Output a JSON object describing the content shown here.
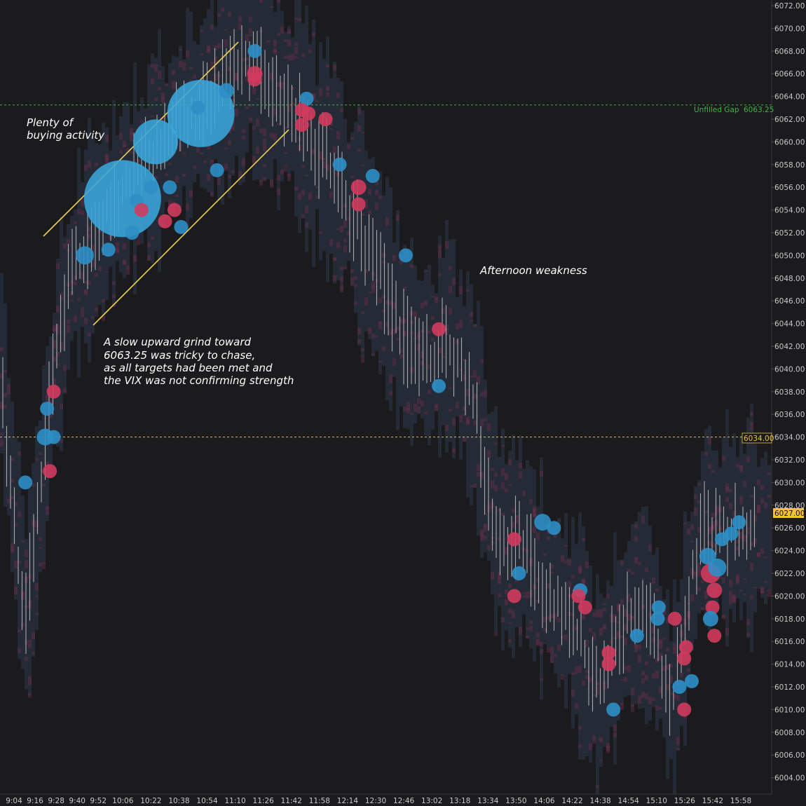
{
  "chart_data": {
    "type": "scatter",
    "title": "",
    "xlabel": "",
    "ylabel": "",
    "ylim": [
      6003,
      6072
    ],
    "grid": false,
    "y_ticks": [
      "6072.00",
      "6070.00",
      "6068.00",
      "6066.00",
      "6064.00",
      "6062.00",
      "6060.00",
      "6058.00",
      "6056.00",
      "6054.00",
      "6052.00",
      "6050.00",
      "6048.00",
      "6046.00",
      "6044.00",
      "6042.00",
      "6040.00",
      "6038.00",
      "6036.00",
      "6034.00",
      "6032.00",
      "6030.00",
      "6028.00",
      "6026.00",
      "6024.00",
      "6022.00",
      "6020.00",
      "6018.00",
      "6016.00",
      "6014.00",
      "6012.00",
      "6010.00",
      "6008.00",
      "6006.00",
      "6004.00"
    ],
    "x_ticks": [
      "9:04",
      "9:16",
      "9:28",
      "9:40",
      "9:52",
      "10:06",
      "10:22",
      "10:38",
      "10:54",
      "11:10",
      "11:26",
      "11:42",
      "11:58",
      "12:14",
      "12:30",
      "12:46",
      "13:02",
      "13:18",
      "13:34",
      "13:50",
      "14:06",
      "14:22",
      "14:38",
      "14:54",
      "15:10",
      "15:26",
      "15:42",
      "15:58"
    ],
    "reference_lines": [
      {
        "label": "Unfilled Gap",
        "value": 6063.25,
        "value_label": "6063.25",
        "color": "#43b04a"
      },
      {
        "label": "",
        "value": 6034.0,
        "value_label": "6034.00",
        "color": "#e8c540"
      }
    ],
    "last_price": {
      "value": 6027.0,
      "label": "6027.00",
      "color": "#f4c430"
    },
    "price_path": [
      [
        9.0,
        6040.5
      ],
      [
        9.1,
        6030.0
      ],
      [
        9.25,
        6018.0
      ],
      [
        9.35,
        6026.0
      ],
      [
        9.45,
        6034.0
      ],
      [
        9.55,
        6041.0
      ],
      [
        9.7,
        6048.0
      ],
      [
        9.85,
        6051.0
      ],
      [
        10.0,
        6053.0
      ],
      [
        10.15,
        6055.0
      ],
      [
        10.3,
        6056.5
      ],
      [
        10.45,
        6058.0
      ],
      [
        10.6,
        6059.5
      ],
      [
        10.75,
        6061.0
      ],
      [
        10.9,
        6062.5
      ],
      [
        11.05,
        6063.5
      ],
      [
        11.2,
        6065.0
      ],
      [
        11.35,
        6066.5
      ],
      [
        11.5,
        6067.5
      ],
      [
        11.65,
        6066.0
      ],
      [
        11.8,
        6064.0
      ],
      [
        11.95,
        6063.0
      ],
      [
        12.1,
        6060.0
      ],
      [
        12.25,
        6058.5
      ],
      [
        12.4,
        6056.0
      ],
      [
        12.55,
        6053.0
      ],
      [
        12.7,
        6050.0
      ],
      [
        12.85,
        6047.0
      ],
      [
        13.0,
        6043.0
      ],
      [
        13.15,
        6042.0
      ],
      [
        13.3,
        6041.0
      ],
      [
        13.45,
        6043.0
      ],
      [
        13.6,
        6040.0
      ],
      [
        13.75,
        6036.0
      ],
      [
        13.85,
        6030.0
      ],
      [
        13.95,
        6026.0
      ],
      [
        14.05,
        6024.0
      ],
      [
        14.2,
        6025.0
      ],
      [
        14.35,
        6022.0
      ],
      [
        14.5,
        6020.0
      ],
      [
        14.65,
        6018.5
      ],
      [
        14.8,
        6016.0
      ],
      [
        14.95,
        6012.0
      ],
      [
        15.1,
        6015.0
      ],
      [
        15.25,
        6018.0
      ],
      [
        15.4,
        6019.0
      ],
      [
        15.55,
        6016.0
      ],
      [
        15.7,
        6010.0
      ],
      [
        15.8,
        6016.0
      ],
      [
        15.9,
        6022.0
      ],
      [
        16.0,
        6026.0
      ]
    ],
    "bubbles": [
      {
        "t": 9.12,
        "price": 6030.0,
        "size": 1,
        "side": "buy"
      },
      {
        "t": 9.33,
        "price": 6034.0,
        "size": 1.2,
        "side": "buy"
      },
      {
        "t": 9.35,
        "price": 6036.5,
        "size": 1,
        "side": "buy"
      },
      {
        "t": 9.38,
        "price": 6031.0,
        "size": 1,
        "side": "sell"
      },
      {
        "t": 9.42,
        "price": 6038.0,
        "size": 1,
        "side": "sell"
      },
      {
        "t": 9.42,
        "price": 6034.0,
        "size": 1,
        "side": "buy"
      },
      {
        "t": 9.75,
        "price": 6050.0,
        "size": 1.3,
        "side": "buy"
      },
      {
        "t": 10.0,
        "price": 6050.5,
        "size": 1,
        "side": "buy"
      },
      {
        "t": 10.15,
        "price": 6055.0,
        "size": 5.5,
        "side": "buy"
      },
      {
        "t": 10.25,
        "price": 6052.0,
        "size": 1,
        "side": "buy"
      },
      {
        "t": 10.3,
        "price": 6054.8,
        "size": 1,
        "side": "buy"
      },
      {
        "t": 10.35,
        "price": 6054.0,
        "size": 1,
        "side": "sell"
      },
      {
        "t": 10.45,
        "price": 6056.0,
        "size": 1,
        "side": "buy"
      },
      {
        "t": 10.5,
        "price": 6060.0,
        "size": 3.2,
        "side": "buy"
      },
      {
        "t": 10.6,
        "price": 6053.0,
        "size": 1,
        "side": "sell"
      },
      {
        "t": 10.65,
        "price": 6056.0,
        "size": 1,
        "side": "buy"
      },
      {
        "t": 10.7,
        "price": 6054.0,
        "size": 1,
        "side": "sell"
      },
      {
        "t": 10.77,
        "price": 6052.5,
        "size": 1,
        "side": "buy"
      },
      {
        "t": 10.98,
        "price": 6062.5,
        "size": 4.8,
        "side": "buy"
      },
      {
        "t": 10.95,
        "price": 6063.0,
        "size": 1,
        "side": "buy"
      },
      {
        "t": 11.15,
        "price": 6057.5,
        "size": 1,
        "side": "buy"
      },
      {
        "t": 11.25,
        "price": 6064.5,
        "size": 1.1,
        "side": "buy"
      },
      {
        "t": 11.55,
        "price": 6068.0,
        "size": 1,
        "side": "buy"
      },
      {
        "t": 11.55,
        "price": 6066.0,
        "size": 1.1,
        "side": "sell"
      },
      {
        "t": 11.55,
        "price": 6065.5,
        "size": 1,
        "side": "sell"
      },
      {
        "t": 12.1,
        "price": 6063.8,
        "size": 1,
        "side": "buy"
      },
      {
        "t": 12.05,
        "price": 6062.8,
        "size": 1,
        "side": "sell"
      },
      {
        "t": 12.12,
        "price": 6062.5,
        "size": 1,
        "side": "sell"
      },
      {
        "t": 12.05,
        "price": 6061.5,
        "size": 1,
        "side": "sell"
      },
      {
        "t": 12.3,
        "price": 6062.0,
        "size": 1,
        "side": "sell"
      },
      {
        "t": 12.45,
        "price": 6058.0,
        "size": 1,
        "side": "buy"
      },
      {
        "t": 12.65,
        "price": 6056.0,
        "size": 1.1,
        "side": "sell"
      },
      {
        "t": 12.65,
        "price": 6054.5,
        "size": 1,
        "side": "sell"
      },
      {
        "t": 12.8,
        "price": 6057.0,
        "size": 1,
        "side": "buy"
      },
      {
        "t": 13.15,
        "price": 6050.0,
        "size": 1,
        "side": "buy"
      },
      {
        "t": 13.5,
        "price": 6043.5,
        "size": 1,
        "side": "sell"
      },
      {
        "t": 13.5,
        "price": 6038.5,
        "size": 1,
        "side": "buy"
      },
      {
        "t": 14.3,
        "price": 6025.0,
        "size": 1,
        "side": "sell"
      },
      {
        "t": 14.35,
        "price": 6022.0,
        "size": 1,
        "side": "buy"
      },
      {
        "t": 14.3,
        "price": 6020.0,
        "size": 1,
        "side": "sell"
      },
      {
        "t": 14.6,
        "price": 6026.5,
        "size": 1.2,
        "side": "buy"
      },
      {
        "t": 14.72,
        "price": 6026.0,
        "size": 1,
        "side": "buy"
      },
      {
        "t": 15.0,
        "price": 6020.5,
        "size": 1,
        "side": "buy"
      },
      {
        "t": 14.98,
        "price": 6020.0,
        "size": 1,
        "side": "sell"
      },
      {
        "t": 15.05,
        "price": 6019.0,
        "size": 1,
        "side": "sell"
      },
      {
        "t": 15.3,
        "price": 6015.0,
        "size": 1,
        "side": "sell"
      },
      {
        "t": 15.3,
        "price": 6014.0,
        "size": 1,
        "side": "sell"
      },
      {
        "t": 15.35,
        "price": 6010.0,
        "size": 1,
        "side": "buy"
      },
      {
        "t": 15.6,
        "price": 6016.5,
        "size": 1,
        "side": "buy"
      },
      {
        "t": 15.82,
        "price": 6018.0,
        "size": 1,
        "side": "buy"
      },
      {
        "t": 15.83,
        "price": 6019.0,
        "size": 1,
        "side": "buy"
      },
      {
        "t": 16.0,
        "price": 6018.0,
        "size": 1,
        "side": "sell"
      },
      {
        "t": 16.1,
        "price": 6014.5,
        "size": 1,
        "side": "sell"
      },
      {
        "t": 16.12,
        "price": 6015.5,
        "size": 1,
        "side": "sell"
      },
      {
        "t": 16.05,
        "price": 6012.0,
        "size": 1,
        "side": "buy"
      },
      {
        "t": 16.18,
        "price": 6012.5,
        "size": 1,
        "side": "buy"
      },
      {
        "t": 16.1,
        "price": 6010.0,
        "size": 1,
        "side": "sell"
      },
      {
        "t": 16.35,
        "price": 6023.5,
        "size": 1.2,
        "side": "buy"
      },
      {
        "t": 16.38,
        "price": 6022.0,
        "size": 1.4,
        "side": "sell"
      },
      {
        "t": 16.42,
        "price": 6020.5,
        "size": 1.1,
        "side": "sell"
      },
      {
        "t": 16.4,
        "price": 6019.0,
        "size": 1,
        "side": "sell"
      },
      {
        "t": 16.38,
        "price": 6018.0,
        "size": 1.1,
        "side": "buy"
      },
      {
        "t": 16.42,
        "price": 6016.5,
        "size": 1,
        "side": "sell"
      },
      {
        "t": 16.45,
        "price": 6022.5,
        "size": 1.3,
        "side": "buy"
      },
      {
        "t": 16.5,
        "price": 6025.0,
        "size": 1,
        "side": "buy"
      },
      {
        "t": 16.6,
        "price": 6025.5,
        "size": 1,
        "side": "buy"
      },
      {
        "t": 16.68,
        "price": 6026.5,
        "size": 1,
        "side": "buy"
      }
    ],
    "annotations": [
      {
        "lines": [
          "Plenty of",
          "buying activity"
        ]
      },
      {
        "lines": [
          "A slow upward grind toward",
          "6063.25 was tricky to chase,",
          "as all targets had been met and",
          "the VIX was not confirming strength"
        ]
      },
      {
        "lines": [
          "Afternoon weakness"
        ]
      }
    ],
    "colors": {
      "background": "#1b1b1d",
      "buy": "#2e8fc7",
      "sell": "#d23b5e",
      "bubble_big": "#3aa6dc",
      "channel": "#f0d050",
      "wick": "#bfbfbf",
      "heatmap_blue": "#3a4a66",
      "heatmap_red": "#6a2f4a"
    }
  }
}
